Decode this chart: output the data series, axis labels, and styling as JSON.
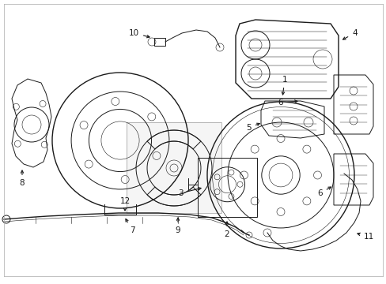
{
  "bg_color": "#ffffff",
  "line_color": "#1a1a1a",
  "figsize": [
    4.89,
    3.6
  ],
  "dpi": 100,
  "border_color": "#cccccc"
}
